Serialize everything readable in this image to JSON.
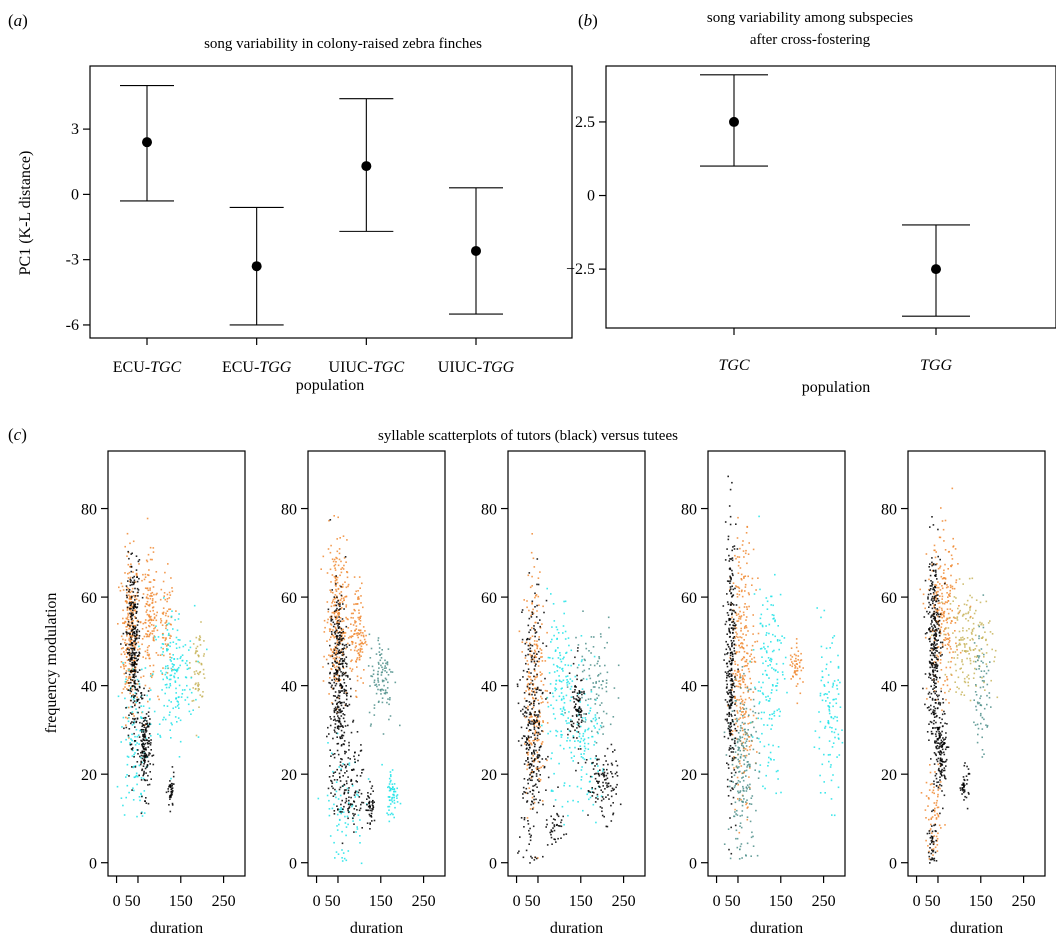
{
  "panels": {
    "a": {
      "letter": "a"
    },
    "b": {
      "letter": "b"
    },
    "c": {
      "letter": "c"
    }
  },
  "chart_data": [
    {
      "type": "errorbar",
      "panel": "a",
      "title": "song variability in colony-raised zebra finches",
      "xlabel": "population",
      "ylabel": "PC1 (K-L distance)",
      "categories": [
        {
          "prefix": "ECU-",
          "italic": "TGC"
        },
        {
          "prefix": "ECU-",
          "italic": "TGG"
        },
        {
          "prefix": "UIUC-",
          "italic": "TGC"
        },
        {
          "prefix": "UIUC-",
          "italic": "TGG"
        }
      ],
      "mean": [
        2.4,
        -3.3,
        1.3,
        -2.6
      ],
      "lower": [
        -0.3,
        -6.0,
        -1.7,
        -5.5
      ],
      "upper": [
        5.0,
        -0.6,
        4.4,
        0.3
      ],
      "yticks": [
        3,
        0,
        -3,
        -6
      ],
      "ylim": [
        -6.6,
        5.9
      ]
    },
    {
      "type": "errorbar",
      "panel": "b",
      "title_lines": [
        "song variability among subspecies",
        "after cross-fostering"
      ],
      "xlabel": "population",
      "categories": [
        {
          "prefix": "",
          "italic": "TGC"
        },
        {
          "prefix": "",
          "italic": "TGG"
        }
      ],
      "mean": [
        2.5,
        -2.5
      ],
      "lower": [
        1.0,
        -4.1
      ],
      "upper": [
        4.1,
        -1.0
      ],
      "yticks": [
        "2.5",
        "0",
        "−2.5"
      ],
      "ylim": [
        -4.5,
        4.4
      ]
    },
    {
      "type": "scatter",
      "panel": "c",
      "title": "syllable scatterplots of tutors (black) versus tutees",
      "xlabel": "duration",
      "ylabel": "frequency modulation",
      "xticks": [
        0,
        50,
        150,
        250
      ],
      "yticks": [
        0,
        20,
        40,
        60,
        80
      ],
      "xlim": [
        -20,
        300
      ],
      "ylim": [
        -3,
        93
      ],
      "colors": {
        "tutor": "#000000",
        "orange": "#f08a33",
        "cyan": "#1ee3e8",
        "teal": "#4f8f8b",
        "tan": "#c8b45c"
      },
      "subplots": [
        {
          "clusters": [
            {
              "color": "orange",
              "x": 30,
              "y": 52,
              "sx": 10,
              "sy": 9,
              "n": 260
            },
            {
              "color": "orange",
              "x": 75,
              "y": 55,
              "sx": 10,
              "sy": 7,
              "n": 140
            },
            {
              "color": "orange",
              "x": 115,
              "y": 53,
              "sx": 9,
              "sy": 6,
              "n": 70
            },
            {
              "color": "tan",
              "x": 190,
              "y": 45,
              "sx": 9,
              "sy": 4,
              "n": 60
            },
            {
              "color": "cyan",
              "x": 130,
              "y": 42,
              "sx": 25,
              "sy": 8,
              "n": 170
            },
            {
              "color": "cyan",
              "x": 40,
              "y": 28,
              "sx": 16,
              "sy": 9,
              "n": 120
            },
            {
              "color": "tutor",
              "x": 38,
              "y": 48,
              "sx": 8,
              "sy": 10,
              "n": 300
            },
            {
              "color": "tutor",
              "x": 65,
              "y": 26,
              "sx": 7,
              "sy": 5,
              "n": 160
            },
            {
              "color": "tutor",
              "x": 125,
              "y": 16,
              "sx": 4,
              "sy": 2,
              "n": 40
            }
          ]
        },
        {
          "clusters": [
            {
              "color": "orange",
              "x": 45,
              "y": 55,
              "sx": 12,
              "sy": 9,
              "n": 260
            },
            {
              "color": "orange",
              "x": 95,
              "y": 52,
              "sx": 9,
              "sy": 6,
              "n": 120
            },
            {
              "color": "teal",
              "x": 150,
              "y": 42,
              "sx": 15,
              "sy": 5,
              "n": 100
            },
            {
              "color": "cyan",
              "x": 175,
              "y": 16,
              "sx": 7,
              "sy": 3,
              "n": 60
            },
            {
              "color": "cyan",
              "x": 60,
              "y": 12,
              "sx": 25,
              "sy": 7,
              "n": 80
            },
            {
              "color": "tutor",
              "x": 50,
              "y": 42,
              "sx": 10,
              "sy": 10,
              "n": 320
            },
            {
              "color": "tutor",
              "x": 70,
              "y": 18,
              "sx": 22,
              "sy": 6,
              "n": 140
            },
            {
              "color": "tutor",
              "x": 125,
              "y": 13,
              "sx": 5,
              "sy": 2,
              "n": 45
            }
          ]
        },
        {
          "clusters": [
            {
              "color": "orange",
              "x": 40,
              "y": 40,
              "sx": 12,
              "sy": 14,
              "n": 220
            },
            {
              "color": "cyan",
              "x": 100,
              "y": 40,
              "sx": 15,
              "sy": 10,
              "n": 130
            },
            {
              "color": "cyan",
              "x": 160,
              "y": 25,
              "sx": 25,
              "sy": 8,
              "n": 120
            },
            {
              "color": "teal",
              "x": 180,
              "y": 42,
              "sx": 25,
              "sy": 7,
              "n": 90
            },
            {
              "color": "tutor",
              "x": 35,
              "y": 30,
              "sx": 14,
              "sy": 14,
              "n": 320
            },
            {
              "color": "tutor",
              "x": 140,
              "y": 35,
              "sx": 8,
              "sy": 5,
              "n": 90
            },
            {
              "color": "tutor",
              "x": 200,
              "y": 18,
              "sx": 18,
              "sy": 4,
              "n": 110
            },
            {
              "color": "tutor",
              "x": 90,
              "y": 8,
              "sx": 10,
              "sy": 2,
              "n": 35
            }
          ]
        },
        {
          "clusters": [
            {
              "color": "orange",
              "x": 60,
              "y": 45,
              "sx": 14,
              "sy": 14,
              "n": 300
            },
            {
              "color": "orange",
              "x": 185,
              "y": 45,
              "sx": 8,
              "sy": 3,
              "n": 50
            },
            {
              "color": "cyan",
              "x": 120,
              "y": 42,
              "sx": 18,
              "sy": 12,
              "n": 150
            },
            {
              "color": "cyan",
              "x": 260,
              "y": 32,
              "sx": 18,
              "sy": 9,
              "n": 110
            },
            {
              "color": "teal",
              "x": 60,
              "y": 22,
              "sx": 18,
              "sy": 10,
              "n": 200
            },
            {
              "color": "tutor",
              "x": 32,
              "y": 45,
              "sx": 6,
              "sy": 15,
              "n": 300
            }
          ]
        },
        {
          "clusters": [
            {
              "color": "orange",
              "x": 60,
              "y": 55,
              "sx": 18,
              "sy": 9,
              "n": 240
            },
            {
              "color": "tan",
              "x": 120,
              "y": 50,
              "sx": 28,
              "sy": 6,
              "n": 170
            },
            {
              "color": "teal",
              "x": 150,
              "y": 40,
              "sx": 10,
              "sy": 8,
              "n": 70
            },
            {
              "color": "orange",
              "x": 40,
              "y": 10,
              "sx": 10,
              "sy": 5,
              "n": 70
            },
            {
              "color": "tutor",
              "x": 38,
              "y": 50,
              "sx": 8,
              "sy": 11,
              "n": 300
            },
            {
              "color": "tutor",
              "x": 55,
              "y": 25,
              "sx": 7,
              "sy": 5,
              "n": 150
            },
            {
              "color": "tutor",
              "x": 110,
              "y": 18,
              "sx": 5,
              "sy": 2,
              "n": 40
            },
            {
              "color": "tutor",
              "x": 35,
              "y": 5,
              "sx": 5,
              "sy": 3,
              "n": 40
            }
          ]
        }
      ]
    }
  ]
}
